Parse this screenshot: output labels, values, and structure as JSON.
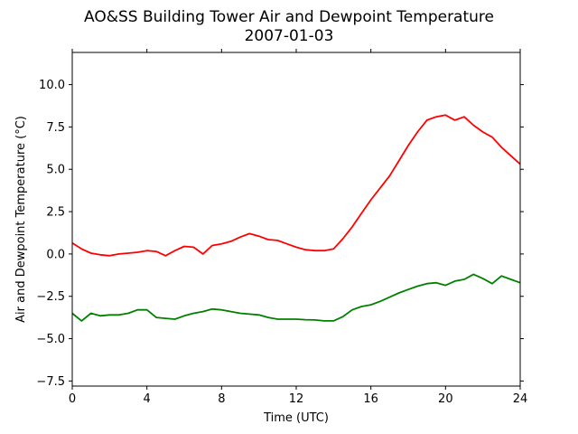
{
  "chart_data": {
    "type": "line",
    "title": "AO&SS Building Tower Air and Dewpoint Temperature",
    "subtitle": "2007-01-03",
    "xlabel": "Time (UTC)",
    "ylabel": "Air and Dewpoint Temperature (°C)",
    "xlim": [
      0,
      24
    ],
    "ylim": [
      -7.8,
      11.9
    ],
    "xticks": [
      0,
      4,
      8,
      12,
      16,
      20,
      24
    ],
    "xtick_labels": [
      "0",
      "4",
      "8",
      "12",
      "16",
      "20",
      "24"
    ],
    "yticks": [
      -7.5,
      -5.0,
      -2.5,
      0.0,
      2.5,
      5.0,
      7.5,
      10.0
    ],
    "ytick_labels": [
      "−7.5",
      "−5.0",
      "−2.5",
      "0.0",
      "2.5",
      "5.0",
      "7.5",
      "10.0"
    ],
    "grid": false,
    "legend": "none",
    "series": [
      {
        "color": "#ff0000",
        "x": [
          0,
          0.5,
          1,
          1.5,
          2,
          2.5,
          3,
          3.5,
          4,
          4.5,
          5,
          5.5,
          6,
          6.5,
          7,
          7.5,
          8,
          8.5,
          9,
          9.5,
          10,
          10.5,
          11,
          11.5,
          12,
          12.5,
          13,
          13.5,
          14,
          14.5,
          15,
          15.5,
          16,
          16.5,
          17,
          17.5,
          18,
          18.5,
          19,
          19.5,
          20,
          20.5,
          21,
          21.5,
          22,
          22.5,
          23,
          23.5,
          24
        ],
        "values": [
          0.65,
          0.3,
          0.05,
          -0.05,
          -0.1,
          0.0,
          0.05,
          0.1,
          0.2,
          0.15,
          -0.1,
          0.2,
          0.45,
          0.4,
          0.0,
          0.5,
          0.6,
          0.75,
          1.0,
          1.2,
          1.05,
          0.85,
          0.8,
          0.6,
          0.4,
          0.25,
          0.2,
          0.2,
          0.3,
          0.9,
          1.6,
          2.4,
          3.2,
          3.9,
          4.6,
          5.5,
          6.4,
          7.2,
          7.9,
          8.1,
          8.2,
          7.9,
          8.1,
          7.6,
          7.2,
          6.9,
          6.3,
          5.8,
          5.3
        ]
      },
      {
        "color": "#008000",
        "x": [
          0,
          0.5,
          1,
          1.5,
          2,
          2.5,
          3,
          3.5,
          4,
          4.5,
          5,
          5.5,
          6,
          6.5,
          7,
          7.5,
          8,
          8.5,
          9,
          9.5,
          10,
          10.5,
          11,
          11.5,
          12,
          12.5,
          13,
          13.5,
          14,
          14.5,
          15,
          15.5,
          16,
          16.5,
          17,
          17.5,
          18,
          18.5,
          19,
          19.5,
          20,
          20.5,
          21,
          21.5,
          22,
          22.5,
          23,
          23.5,
          24
        ],
        "values": [
          -3.5,
          -3.95,
          -3.5,
          -3.65,
          -3.6,
          -3.6,
          -3.5,
          -3.3,
          -3.3,
          -3.75,
          -3.8,
          -3.85,
          -3.65,
          -3.5,
          -3.4,
          -3.25,
          -3.3,
          -3.4,
          -3.5,
          -3.55,
          -3.6,
          -3.75,
          -3.85,
          -3.85,
          -3.85,
          -3.88,
          -3.9,
          -3.95,
          -3.95,
          -3.7,
          -3.3,
          -3.1,
          -3.0,
          -2.8,
          -2.55,
          -2.3,
          -2.1,
          -1.9,
          -1.75,
          -1.7,
          -1.85,
          -1.6,
          -1.5,
          -1.2,
          -1.45,
          -1.75,
          -1.3,
          -1.5,
          -1.7
        ]
      }
    ]
  }
}
